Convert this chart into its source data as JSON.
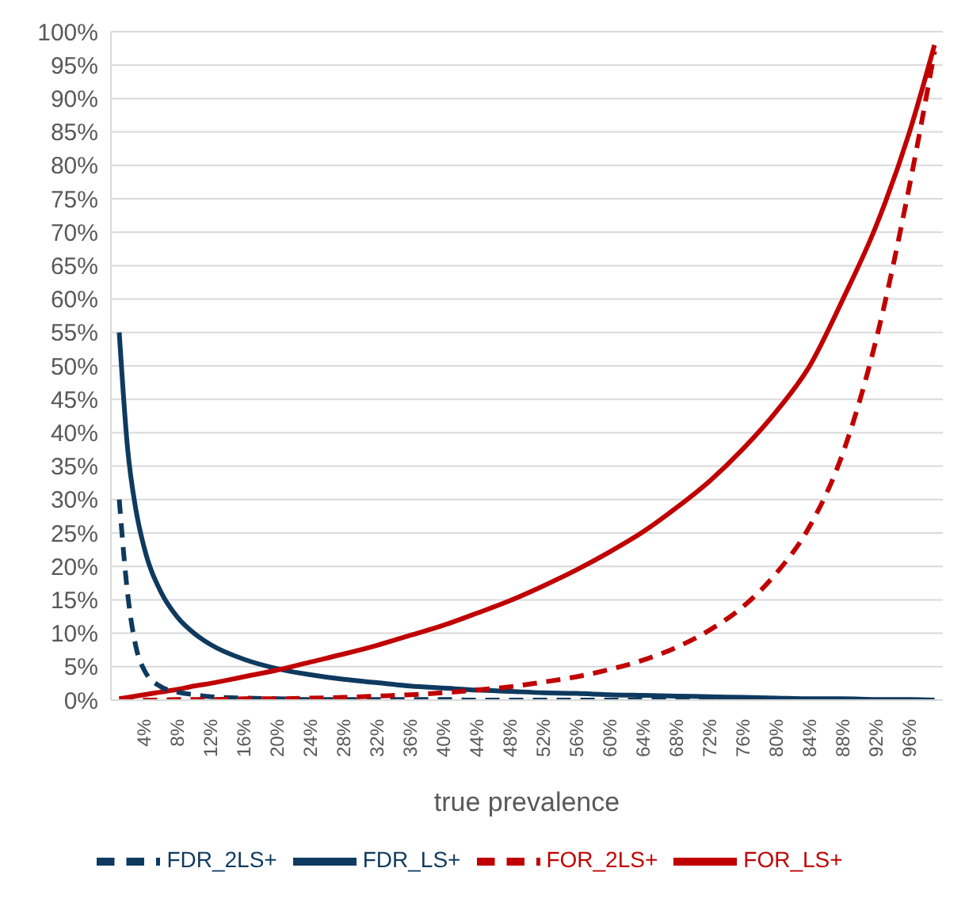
{
  "chart_data": {
    "type": "line",
    "xlabel": "true prevalence",
    "x": [
      1,
      2,
      3,
      4,
      6,
      8,
      10,
      12,
      16,
      20,
      24,
      28,
      32,
      36,
      40,
      44,
      48,
      52,
      56,
      60,
      64,
      68,
      72,
      76,
      80,
      84,
      88,
      92,
      96,
      99
    ],
    "xlim": [
      0,
      100
    ],
    "xticks": [
      {
        "value": 4,
        "label": "4%"
      },
      {
        "value": 8,
        "label": "8%"
      },
      {
        "value": 12,
        "label": "12%"
      },
      {
        "value": 16,
        "label": "16%"
      },
      {
        "value": 20,
        "label": "20%"
      },
      {
        "value": 24,
        "label": "24%"
      },
      {
        "value": 28,
        "label": "28%"
      },
      {
        "value": 32,
        "label": "32%"
      },
      {
        "value": 36,
        "label": "36%"
      },
      {
        "value": 40,
        "label": "40%"
      },
      {
        "value": 44,
        "label": "44%"
      },
      {
        "value": 48,
        "label": "48%"
      },
      {
        "value": 52,
        "label": "52%"
      },
      {
        "value": 56,
        "label": "56%"
      },
      {
        "value": 60,
        "label": "60%"
      },
      {
        "value": 64,
        "label": "64%"
      },
      {
        "value": 68,
        "label": "68%"
      },
      {
        "value": 72,
        "label": "72%"
      },
      {
        "value": 76,
        "label": "76%"
      },
      {
        "value": 80,
        "label": "80%"
      },
      {
        "value": 84,
        "label": "84%"
      },
      {
        "value": 88,
        "label": "88%"
      },
      {
        "value": 92,
        "label": "92%"
      },
      {
        "value": 96,
        "label": "96%"
      }
    ],
    "ylim": [
      0,
      100
    ],
    "yticks": [
      {
        "value": 0,
        "label": "0%"
      },
      {
        "value": 5,
        "label": "5%"
      },
      {
        "value": 10,
        "label": "10%"
      },
      {
        "value": 15,
        "label": "15%"
      },
      {
        "value": 20,
        "label": "20%"
      },
      {
        "value": 25,
        "label": "25%"
      },
      {
        "value": 30,
        "label": "30%"
      },
      {
        "value": 35,
        "label": "35%"
      },
      {
        "value": 40,
        "label": "40%"
      },
      {
        "value": 45,
        "label": "45%"
      },
      {
        "value": 50,
        "label": "50%"
      },
      {
        "value": 55,
        "label": "55%"
      },
      {
        "value": 60,
        "label": "60%"
      },
      {
        "value": 65,
        "label": "65%"
      },
      {
        "value": 70,
        "label": "70%"
      },
      {
        "value": 75,
        "label": "75%"
      },
      {
        "value": 80,
        "label": "80%"
      },
      {
        "value": 85,
        "label": "85%"
      },
      {
        "value": 90,
        "label": "90%"
      },
      {
        "value": 95,
        "label": "95%"
      },
      {
        "value": 100,
        "label": "100%"
      }
    ],
    "grid": "y",
    "legend": "bottom",
    "marker": "none",
    "series": [
      {
        "name": "FDR_LS+",
        "color": "#0f3a5f",
        "line_style": "solid",
        "values": [
          55,
          37.7,
          28.5,
          22.8,
          16.2,
          12.4,
          10,
          8.3,
          6.1,
          4.7,
          3.8,
          3.1,
          2.6,
          2.1,
          1.8,
          1.5,
          1.3,
          1.1,
          1,
          0.8,
          0.7,
          0.6,
          0.5,
          0.4,
          0.3,
          0.2,
          0.2,
          0.1,
          0.1,
          0
        ]
      },
      {
        "name": "FOR_LS+",
        "color": "#c00000",
        "line_style": "solid",
        "values": [
          0.2,
          0.4,
          0.6,
          0.8,
          1.2,
          1.6,
          2.1,
          2.5,
          3.5,
          4.5,
          5.7,
          6.9,
          8.2,
          9.7,
          11.2,
          13,
          14.9,
          17.1,
          19.5,
          22.2,
          25.2,
          28.8,
          32.8,
          37.6,
          43.2,
          50,
          60,
          71,
          85,
          98
        ]
      },
      {
        "name": "FDR_2LS+",
        "color": "#0f3a5f",
        "line_style": "dashed",
        "values": [
          30,
          16,
          8,
          4.5,
          2,
          1.2,
          0.8,
          0.5,
          0.3,
          0.2,
          0.1,
          0.1,
          0.1,
          0.1,
          0.1,
          0,
          0,
          0,
          0,
          0,
          0,
          0,
          0,
          0,
          0,
          0,
          0,
          0,
          0,
          0
        ]
      },
      {
        "name": "FOR_2LS+",
        "color": "#c00000",
        "line_style": "dashed",
        "values": [
          0,
          0,
          0,
          0,
          0,
          0.1,
          0.1,
          0.1,
          0.2,
          0.2,
          0.3,
          0.4,
          0.6,
          0.8,
          1.1,
          1.5,
          2,
          2.7,
          3.5,
          4.6,
          6,
          7.9,
          10.5,
          14,
          19,
          26,
          37,
          54,
          77,
          97
        ]
      }
    ]
  }
}
